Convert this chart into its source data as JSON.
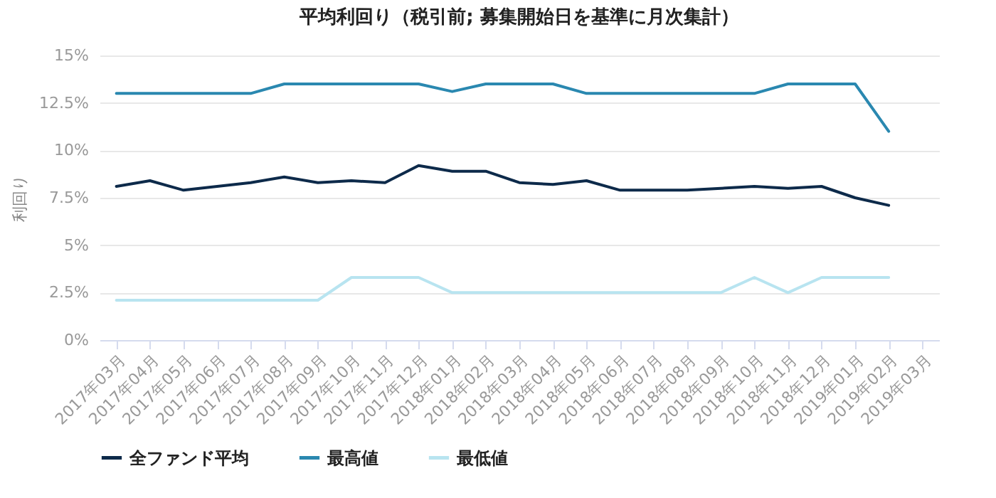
{
  "chart_data": {
    "type": "line",
    "title": "平均利回り（税引前; 募集開始日を基準に月次集計）",
    "ylabel": "利回り",
    "categories": [
      "2017年03月",
      "2017年04月",
      "2017年05月",
      "2017年06月",
      "2017年07月",
      "2017年08月",
      "2017年09月",
      "2017年10月",
      "2017年11月",
      "2017年12月",
      "2018年01月",
      "2018年02月",
      "2018年03月",
      "2018年04月",
      "2018年05月",
      "2018年06月",
      "2018年07月",
      "2018年08月",
      "2018年09月",
      "2018年10月",
      "2018年11月",
      "2018年12月",
      "2019年01月",
      "2019年02月",
      "2019年03月"
    ],
    "series": [
      {
        "name": "全ファンド平均",
        "color": "#0d2a4a",
        "values": [
          8.1,
          8.4,
          7.9,
          8.1,
          8.3,
          8.6,
          8.3,
          8.4,
          8.3,
          9.2,
          8.9,
          8.9,
          8.3,
          8.2,
          8.4,
          7.9,
          7.9,
          7.9,
          8.0,
          8.1,
          8.0,
          8.1,
          7.5,
          7.1,
          null
        ]
      },
      {
        "name": "最高値",
        "color": "#2a88b0",
        "values": [
          13,
          13,
          13,
          13,
          13,
          13.5,
          13.5,
          13.5,
          13.5,
          13.5,
          13.1,
          13.5,
          13.5,
          13.5,
          13,
          13,
          13,
          13,
          13,
          13,
          13.5,
          13.5,
          13.5,
          11,
          null
        ]
      },
      {
        "name": "最低値",
        "color": "#b8e4f0",
        "values": [
          2.1,
          2.1,
          2.1,
          2.1,
          2.1,
          2.1,
          2.1,
          3.3,
          3.3,
          3.3,
          2.5,
          2.5,
          2.5,
          2.5,
          2.5,
          2.5,
          2.5,
          2.5,
          2.5,
          3.3,
          2.5,
          3.3,
          3.3,
          3.3,
          null
        ]
      }
    ],
    "ylim": [
      0,
      15
    ],
    "yticks": [
      {
        "value": 0,
        "label": "0%"
      },
      {
        "value": 2.5,
        "label": "2.5%"
      },
      {
        "value": 5,
        "label": "5%"
      },
      {
        "value": 7.5,
        "label": "7.5%"
      },
      {
        "value": 10,
        "label": "10%"
      },
      {
        "value": 12.5,
        "label": "12.5%"
      },
      {
        "value": 15,
        "label": "15%"
      }
    ],
    "grid": "y",
    "legend": "bottom",
    "marker": "none",
    "line_style": "solid"
  }
}
